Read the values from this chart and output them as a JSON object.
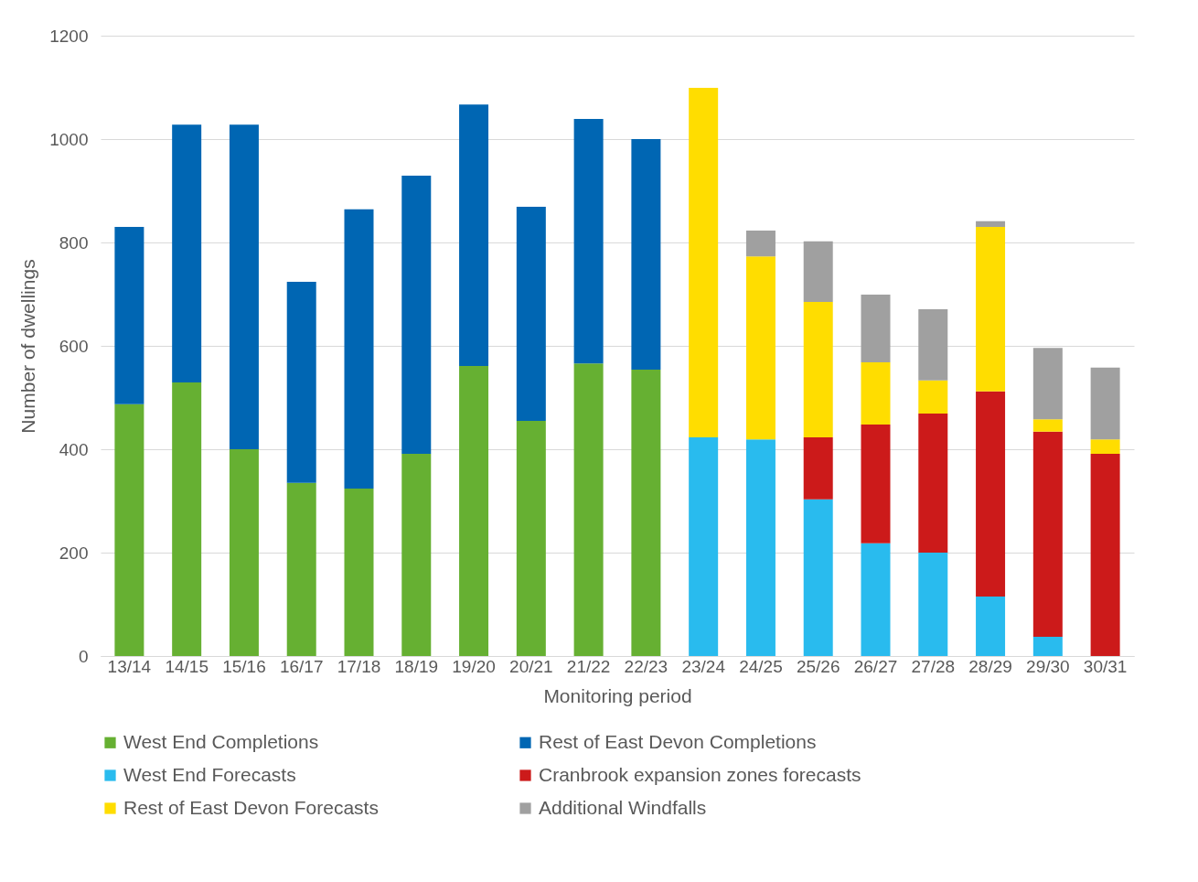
{
  "chart_data": {
    "type": "bar",
    "stacked": true,
    "xlabel": "Monitoring period",
    "ylabel": "Number of dwellings",
    "categories": [
      "13/14",
      "14/15",
      "15/16",
      "16/17",
      "17/18",
      "18/19",
      "19/20",
      "20/21",
      "21/22",
      "22/23",
      "23/24",
      "24/25",
      "25/26",
      "26/27",
      "27/28",
      "28/29",
      "29/30",
      "30/31"
    ],
    "series": [
      {
        "name": "West End Completions",
        "color": "#66b032",
        "values": [
          487,
          529,
          400,
          335,
          324,
          391,
          561,
          455,
          566,
          554,
          null,
          null,
          null,
          null,
          null,
          null,
          null,
          null
        ]
      },
      {
        "name": "Rest of East Devon Completions",
        "color": "#0066b3",
        "values": [
          343,
          499,
          628,
          389,
          540,
          538,
          506,
          414,
          473,
          446,
          null,
          null,
          null,
          null,
          null,
          null,
          null,
          null
        ]
      },
      {
        "name": "West End Forecasts",
        "color": "#29bbee",
        "values": [
          null,
          null,
          null,
          null,
          null,
          null,
          null,
          null,
          null,
          null,
          423,
          419,
          303,
          218,
          200,
          115,
          37,
          0
        ]
      },
      {
        "name": "Cranbrook expansion zones forecasts",
        "color": "#cc1a1a",
        "values": [
          null,
          null,
          null,
          null,
          null,
          null,
          null,
          null,
          null,
          null,
          null,
          null,
          120,
          230,
          269,
          397,
          397,
          391
        ]
      },
      {
        "name": "Rest of East Devon Forecasts",
        "color": "#ffdd00",
        "values": [
          null,
          null,
          null,
          null,
          null,
          null,
          null,
          null,
          null,
          null,
          676,
          354,
          262,
          120,
          64,
          318,
          24,
          28
        ]
      },
      {
        "name": "Additional Windfalls",
        "color": "#a0a0a0",
        "values": [
          null,
          null,
          null,
          null,
          null,
          null,
          null,
          null,
          null,
          null,
          null,
          50,
          117,
          131,
          138,
          11,
          138,
          139
        ]
      }
    ],
    "ylim": [
      0,
      1200
    ],
    "yticks": [
      0,
      200,
      400,
      600,
      800,
      1000,
      1200
    ],
    "grid": "y",
    "legend": "bottom"
  }
}
